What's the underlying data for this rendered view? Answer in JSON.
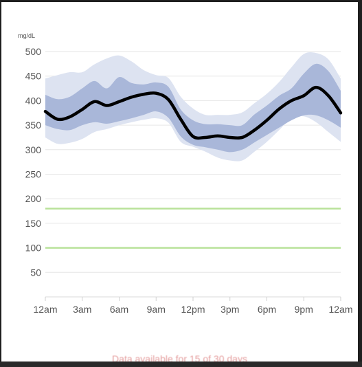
{
  "colors": {
    "background": "#ffffff",
    "grid": "#e6e6e6",
    "median": "#000000",
    "inner_band": "#a9b7d9",
    "outer_band": "#dde3f1",
    "target_range": "#b9e29a",
    "footer_text": "#e5a0a0"
  },
  "footer": {
    "note": "Data available for 15 of 30 days"
  },
  "chart_data": {
    "type": "area",
    "title": "",
    "xlabel": "",
    "ylabel": "mg/dL",
    "ylim": [
      0,
      500
    ],
    "yticks": [
      50,
      100,
      150,
      200,
      250,
      300,
      350,
      400,
      450,
      500
    ],
    "xlim": [
      0,
      24
    ],
    "xticks": [
      0,
      3,
      6,
      9,
      12,
      15,
      18,
      21,
      24
    ],
    "xtick_labels": [
      "12am",
      "3am",
      "6am",
      "9am",
      "12pm",
      "3pm",
      "6pm",
      "9pm",
      "12am"
    ],
    "grid": true,
    "target_range": [
      100,
      180
    ],
    "x": [
      0,
      1,
      2,
      3,
      4,
      5,
      6,
      7,
      8,
      9,
      10,
      11,
      12,
      13,
      14,
      15,
      16,
      17,
      18,
      19,
      20,
      21,
      22,
      23,
      24
    ],
    "series": [
      {
        "role": "median",
        "values": [
          378,
          362,
          367,
          382,
          398,
          390,
          398,
          407,
          413,
          415,
          402,
          362,
          327,
          325,
          328,
          325,
          325,
          340,
          360,
          383,
          400,
          410,
          427,
          410,
          375
        ]
      },
      {
        "role": "inner-band",
        "upper": [
          412,
          403,
          408,
          425,
          440,
          425,
          448,
          436,
          433,
          437,
          428,
          382,
          360,
          352,
          352,
          350,
          350,
          372,
          390,
          410,
          425,
          455,
          475,
          460,
          420
        ],
        "lower": [
          350,
          342,
          340,
          350,
          356,
          353,
          358,
          364,
          371,
          378,
          365,
          327,
          310,
          305,
          300,
          295,
          300,
          315,
          330,
          345,
          360,
          370,
          370,
          360,
          345
        ]
      },
      {
        "role": "outer-band",
        "upper": [
          445,
          452,
          458,
          458,
          474,
          486,
          492,
          480,
          462,
          452,
          446,
          408,
          384,
          371,
          371,
          371,
          376,
          395,
          414,
          438,
          468,
          495,
          497,
          484,
          445
        ],
        "lower": [
          325,
          312,
          314,
          322,
          336,
          342,
          350,
          356,
          361,
          364,
          355,
          316,
          306,
          296,
          284,
          278,
          278,
          296,
          316,
          340,
          364,
          368,
          356,
          336,
          316
        ]
      }
    ]
  }
}
